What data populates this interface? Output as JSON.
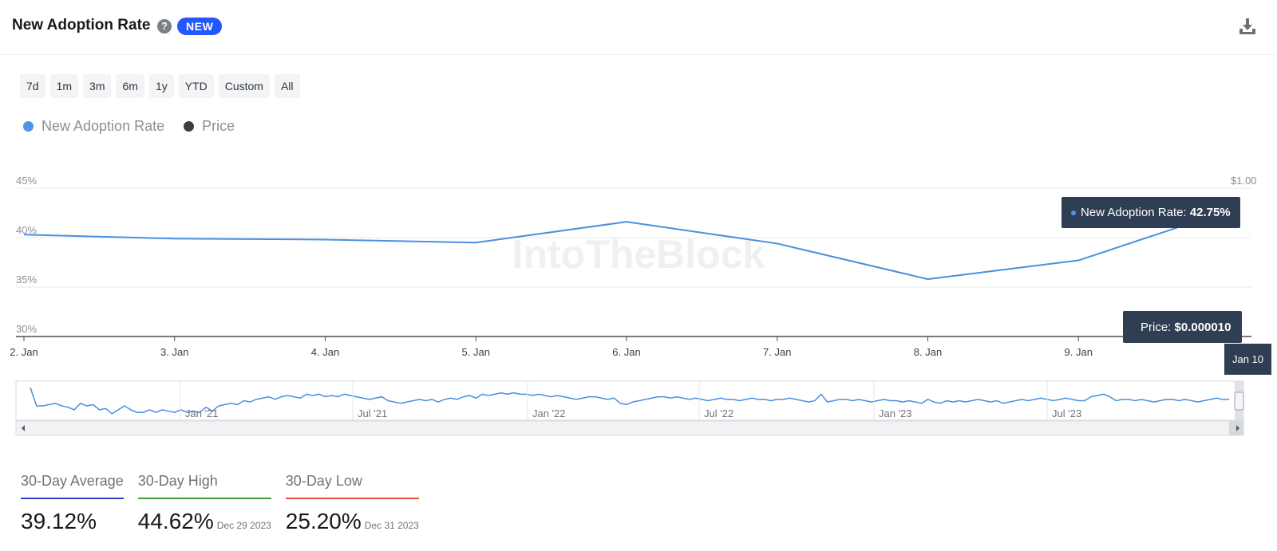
{
  "header": {
    "title": "New Adoption Rate",
    "help_icon": "?",
    "badge": "NEW"
  },
  "ranges": [
    "7d",
    "1m",
    "3m",
    "6m",
    "1y",
    "YTD",
    "Custom",
    "All"
  ],
  "legend": [
    {
      "label": "New Adoption Rate",
      "color": "#4d94e6"
    },
    {
      "label": "Price",
      "color": "#3a3d42"
    }
  ],
  "watermark": "IntoTheBlock",
  "tooltip": {
    "rate_label": "New Adoption Rate:",
    "rate_value": "42.75%",
    "price_label": "Price:",
    "price_value": "$0.000010",
    "date": "Jan 10"
  },
  "chart_data": {
    "type": "line",
    "x": [
      "2. Jan",
      "3. Jan",
      "4. Jan",
      "5. Jan",
      "6. Jan",
      "7. Jan",
      "8. Jan",
      "9. Jan",
      "10. Jan"
    ],
    "series": [
      {
        "name": "New Adoption Rate",
        "values": [
          40.3,
          39.9,
          39.8,
          39.5,
          41.6,
          39.4,
          35.8,
          37.7,
          42.75
        ]
      }
    ],
    "ylim": [
      30,
      45
    ],
    "y_ticks": [
      "30%",
      "35%",
      "40%",
      "45%"
    ],
    "right_axis_ticks": [
      "$1.00"
    ],
    "grid": true,
    "legend_position": "top-left",
    "navigator": {
      "labels": [
        "Jan '21",
        "Jul '21",
        "Jan '22",
        "Jul '22",
        "Jan '23",
        "Jul '23"
      ],
      "values": [
        45,
        31,
        31,
        32,
        33,
        31,
        30,
        28,
        33,
        31,
        32,
        28,
        29,
        25,
        28,
        31,
        28,
        26,
        26,
        28,
        26,
        28,
        27,
        26,
        28,
        26,
        27,
        26,
        30,
        27,
        31,
        32,
        33,
        32,
        35,
        34,
        36,
        37,
        38,
        36,
        38,
        39,
        38,
        37,
        40,
        39,
        40,
        38,
        39,
        38,
        40,
        39,
        38,
        37,
        36,
        37,
        38,
        35,
        34,
        33,
        34,
        35,
        36,
        35,
        36,
        34,
        36,
        37,
        36,
        38,
        39,
        37,
        40,
        39,
        40,
        41,
        40,
        41,
        40,
        40,
        39,
        40,
        39,
        38,
        39,
        38,
        37,
        36,
        37,
        38,
        38,
        37,
        36,
        37,
        33,
        32,
        34,
        35,
        36,
        37,
        38,
        38,
        37,
        38,
        37,
        36,
        37,
        36,
        35,
        36,
        37,
        36,
        36,
        35,
        36,
        37,
        36,
        36,
        35,
        36,
        36,
        37,
        36,
        35,
        34,
        35,
        40,
        34,
        35,
        36,
        36,
        35,
        36,
        35,
        34,
        35,
        36,
        35,
        35,
        34,
        35,
        34,
        33,
        36,
        34,
        33,
        35,
        34,
        35,
        34,
        35,
        36,
        35,
        34,
        35,
        33,
        34,
        35,
        36,
        35,
        36,
        37,
        36,
        35,
        36,
        37,
        36,
        35,
        35,
        38,
        39,
        40,
        38,
        35,
        36,
        36,
        35,
        36,
        35,
        34,
        35,
        36,
        36,
        35,
        36,
        35,
        34,
        35,
        36,
        37,
        36,
        36
      ]
    }
  },
  "stats": [
    {
      "label": "30-Day Average",
      "value": "39.12%",
      "date": "",
      "color": "#3142c9"
    },
    {
      "label": "30-Day High",
      "value": "44.62%",
      "date": "Dec 29 2023",
      "color": "#3f9b3a"
    },
    {
      "label": "30-Day Low",
      "value": "25.20%",
      "date": "Dec 31 2023",
      "color": "#e2553b"
    }
  ]
}
